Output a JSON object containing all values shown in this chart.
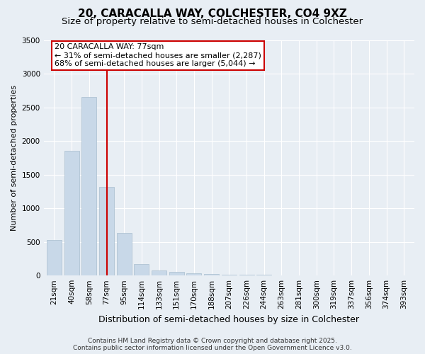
{
  "title": "20, CARACALLA WAY, COLCHESTER, CO4 9XZ",
  "subtitle": "Size of property relative to semi-detached houses in Colchester",
  "xlabel": "Distribution of semi-detached houses by size in Colchester",
  "ylabel": "Number of semi-detached properties",
  "categories": [
    "21sqm",
    "40sqm",
    "58sqm",
    "77sqm",
    "95sqm",
    "114sqm",
    "133sqm",
    "151sqm",
    "170sqm",
    "188sqm",
    "207sqm",
    "226sqm",
    "244sqm",
    "263sqm",
    "281sqm",
    "300sqm",
    "319sqm",
    "337sqm",
    "356sqm",
    "374sqm",
    "393sqm"
  ],
  "values": [
    530,
    1850,
    2650,
    1320,
    630,
    175,
    80,
    50,
    30,
    20,
    15,
    10,
    8,
    6,
    5,
    4,
    3,
    2,
    2,
    1,
    1
  ],
  "bar_color": "#c8d8e8",
  "bar_edge_color": "#a8bece",
  "highlight_bar_index": 3,
  "highlight_line_color": "#cc0000",
  "highlight_box_edge_color": "#cc0000",
  "annotation_title": "20 CARACALLA WAY: 77sqm",
  "annotation_line1": "← 31% of semi-detached houses are smaller (2,287)",
  "annotation_line2": "68% of semi-detached houses are larger (5,044) →",
  "ylim": [
    0,
    3500
  ],
  "yticks": [
    0,
    500,
    1000,
    1500,
    2000,
    2500,
    3000,
    3500
  ],
  "background_color": "#e8eef4",
  "plot_bg_color": "#e8eef4",
  "grid_color": "#ffffff",
  "footer_line1": "Contains HM Land Registry data © Crown copyright and database right 2025.",
  "footer_line2": "Contains public sector information licensed under the Open Government Licence v3.0.",
  "title_fontsize": 11,
  "subtitle_fontsize": 9.5,
  "xlabel_fontsize": 9,
  "ylabel_fontsize": 8,
  "tick_fontsize": 7.5,
  "annotation_fontsize": 8,
  "footer_fontsize": 6.5
}
